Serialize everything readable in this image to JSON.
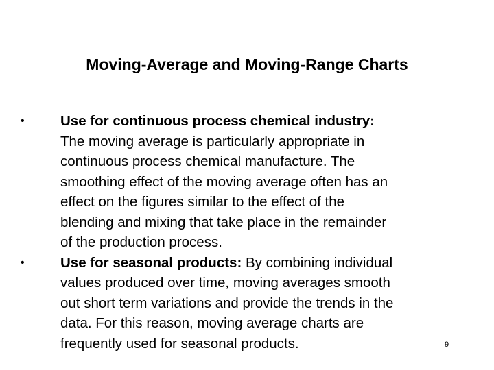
{
  "slide": {
    "title": "Moving-Average and Moving-Range Charts",
    "bullet_symbol": "•",
    "bullets": [
      {
        "heading": "Use for continuous process chemical industry:",
        "lines": [
          "The moving average is particularly appropriate in",
          "continuous process chemical manufacture. The",
          "smoothing effect of the moving average often has an",
          "effect on the figures similar to the effect of the",
          "blending and mixing that take place in the remainder",
          "of the production process."
        ]
      },
      {
        "heading": "Use for seasonal products:",
        "first_line_rest": " By combining individual",
        "lines": [
          "values produced over time, moving averages smooth",
          "out short term variations and provide the trends in the",
          "data. For this reason, moving average charts are",
          "frequently used for seasonal products."
        ]
      }
    ],
    "page_number": "9"
  }
}
